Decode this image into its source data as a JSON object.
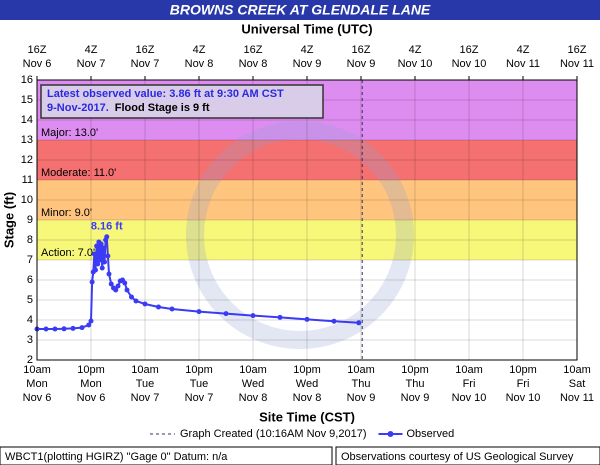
{
  "chart_data": {
    "type": "line",
    "title": "BROWNS CREEK AT GLENDALE LANE",
    "top_axis_label": "Universal Time (UTC)",
    "xlabel": "Site Time (CST)",
    "ylabel": "Stage (ft)",
    "xlim": [
      0,
      120
    ],
    "ylim": [
      2,
      16
    ],
    "yticks": [
      2,
      3,
      4,
      5,
      6,
      7,
      8,
      9,
      10,
      11,
      12,
      13,
      14,
      15,
      16
    ],
    "xticks": [
      {
        "value": 0,
        "label": [
          "10am",
          "Mon",
          "Nov 6"
        ]
      },
      {
        "value": 12,
        "label": [
          "10pm",
          "Mon",
          "Nov 6"
        ]
      },
      {
        "value": 24,
        "label": [
          "10am",
          "Tue",
          "Nov 7"
        ]
      },
      {
        "value": 36,
        "label": [
          "10pm",
          "Tue",
          "Nov 7"
        ]
      },
      {
        "value": 48,
        "label": [
          "10am",
          "Wed",
          "Nov 8"
        ]
      },
      {
        "value": 60,
        "label": [
          "10pm",
          "Wed",
          "Nov 8"
        ]
      },
      {
        "value": 72,
        "label": [
          "10am",
          "Thu",
          "Nov 9"
        ]
      },
      {
        "value": 84,
        "label": [
          "10pm",
          "Thu",
          "Nov 9"
        ]
      },
      {
        "value": 96,
        "label": [
          "10am",
          "Fri",
          "Nov 10"
        ]
      },
      {
        "value": 108,
        "label": [
          "10pm",
          "Fri",
          "Nov 10"
        ]
      },
      {
        "value": 120,
        "label": [
          "10am",
          "Sat",
          "Nov 11"
        ]
      }
    ],
    "top_xticks": [
      {
        "value": 0,
        "label": [
          "16Z",
          "Nov 6"
        ]
      },
      {
        "value": 12,
        "label": [
          "4Z",
          "Nov 7"
        ]
      },
      {
        "value": 24,
        "label": [
          "16Z",
          "Nov 7"
        ]
      },
      {
        "value": 36,
        "label": [
          "4Z",
          "Nov 8"
        ]
      },
      {
        "value": 48,
        "label": [
          "16Z",
          "Nov 8"
        ]
      },
      {
        "value": 60,
        "label": [
          "4Z",
          "Nov 9"
        ]
      },
      {
        "value": 72,
        "label": [
          "16Z",
          "Nov 9"
        ]
      },
      {
        "value": 84,
        "label": [
          "4Z",
          "Nov 10"
        ]
      },
      {
        "value": 96,
        "label": [
          "16Z",
          "Nov 10"
        ]
      },
      {
        "value": 108,
        "label": [
          "4Z",
          "Nov 11"
        ]
      },
      {
        "value": 120,
        "label": [
          "16Z",
          "Nov 11"
        ]
      }
    ],
    "grid": true,
    "stages": [
      {
        "label": "Action: 7.0'",
        "value": 7,
        "color": "#f7f77a"
      },
      {
        "label": "Minor: 9.0'",
        "value": 9,
        "color": "#ffc47e"
      },
      {
        "label": "Moderate: 11.0'",
        "value": 11,
        "color": "#f57070"
      },
      {
        "label": "Major: 13.0'",
        "value": 13,
        "color": "#dd8cef"
      }
    ],
    "info_lines": [
      "Latest observed value: 3.86 ft at 9:30 AM CST",
      "9-Nov-2017.",
      "Flood Stage is 9 ft"
    ],
    "graph_created": {
      "label": "Graph Created (10:16AM Nov 9,2017)",
      "x": 72.27
    },
    "peak_label": "8.16 ft",
    "series": [
      {
        "name": "Observed",
        "color": "#3b3bf5",
        "x": [
          0,
          2,
          4,
          6,
          8,
          10,
          11.5,
          12,
          12.25,
          12.5,
          12.75,
          13,
          13.25,
          13.5,
          13.75,
          14,
          14.25,
          14.5,
          14.75,
          15,
          15.25,
          15.5,
          15.75,
          16,
          16.5,
          17,
          17.5,
          18,
          18.5,
          19,
          19.5,
          20,
          21,
          22,
          24,
          27,
          30,
          36,
          42,
          48,
          54,
          60,
          66,
          71.5
        ],
        "values": [
          3.55,
          3.55,
          3.55,
          3.56,
          3.58,
          3.62,
          3.75,
          3.95,
          5.9,
          6.4,
          7.3,
          6.5,
          7.7,
          6.8,
          7.9,
          7.0,
          7.8,
          6.6,
          7.6,
          6.9,
          8.0,
          8.16,
          7.2,
          6.3,
          5.8,
          5.6,
          5.5,
          5.7,
          5.95,
          6.0,
          5.85,
          5.5,
          5.15,
          4.95,
          4.8,
          4.65,
          4.55,
          4.42,
          4.32,
          4.22,
          4.13,
          4.03,
          3.94,
          3.86
        ]
      }
    ],
    "footer_left": "WBCT1(plotting HGIRZ) \"Gage 0\" Datum: n/a",
    "footer_right": "Observations courtesy of US Geological Survey"
  }
}
